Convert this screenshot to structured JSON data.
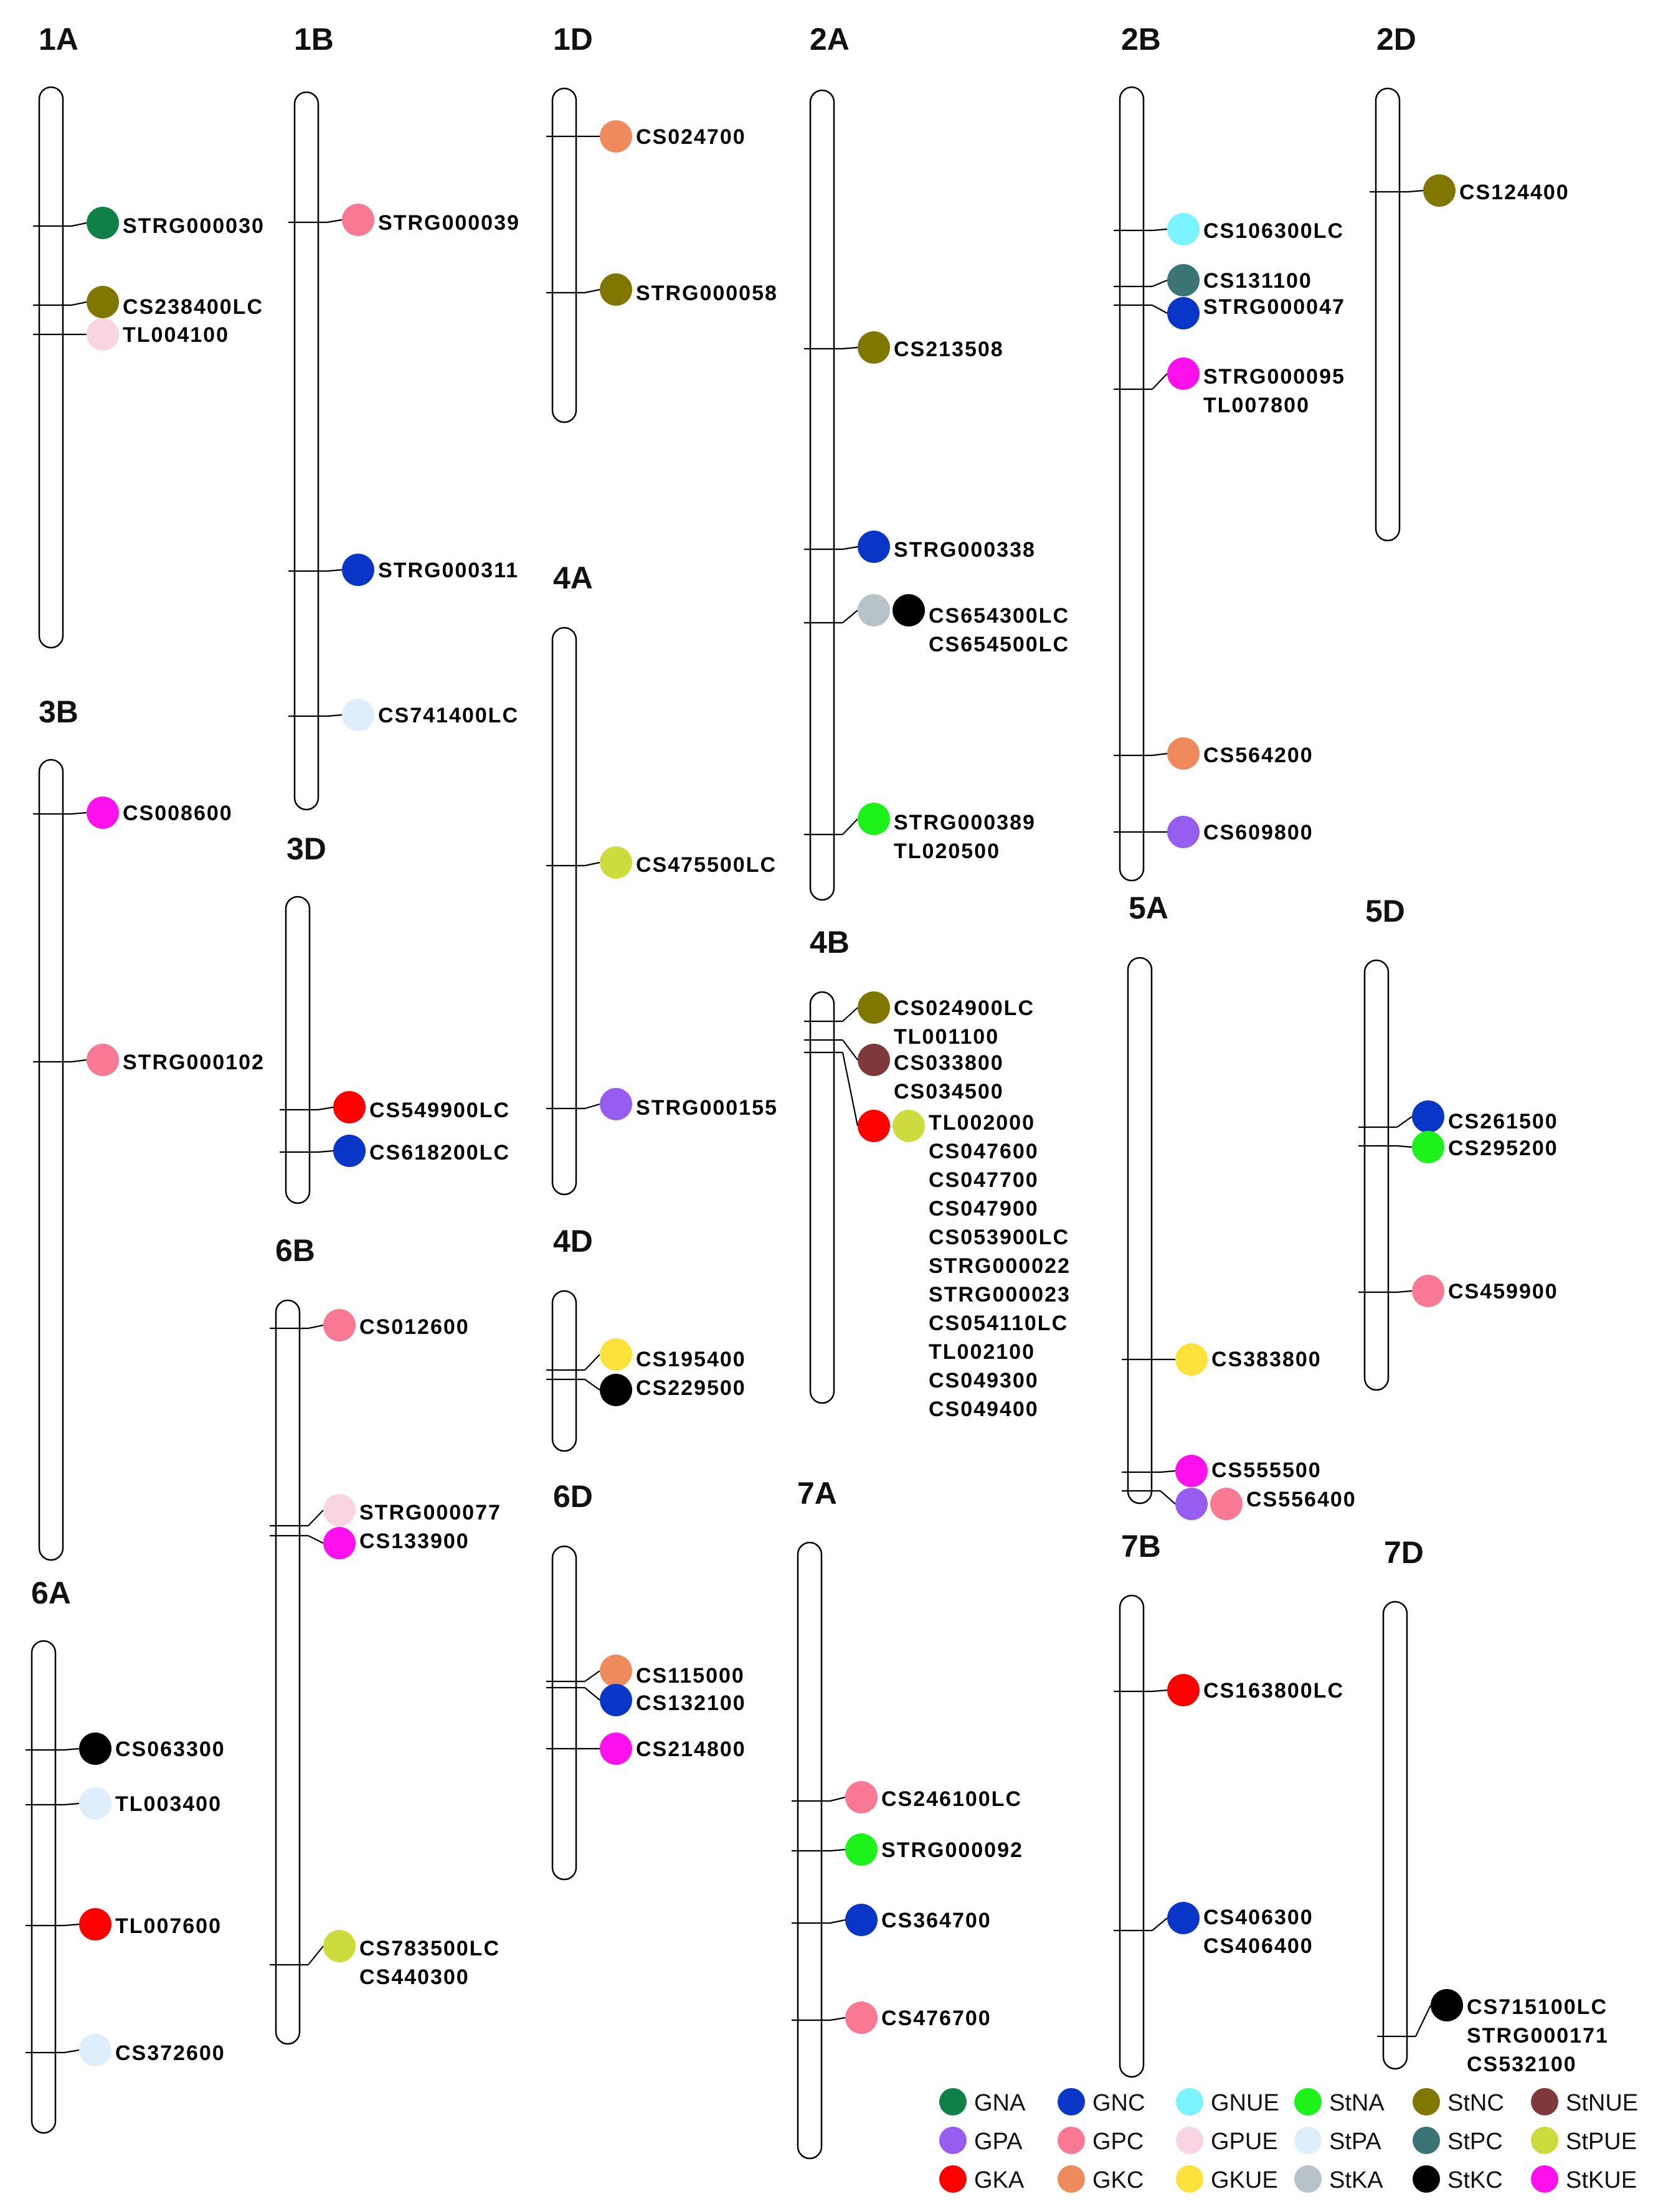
{
  "trait_colors": {
    "GNA": "#0e8048",
    "GNC": "#0a36c7",
    "GNUE": "#7cf4ff",
    "StNA": "#1df21a",
    "StNC": "#807700",
    "StNUE": "#7e3a3a",
    "GPA": "#975cf0",
    "GPC": "#f97893",
    "GPUE": "#f9d4e3",
    "StPA": "#dfeefb",
    "StPC": "#3a7474",
    "StPUE": "#ccdc3c",
    "GKA": "#ff0000",
    "GKC": "#ef8a5c",
    "GKUE": "#fde23c",
    "StKA": "#b8c2c9",
    "StKC": "#000000",
    "StKUE": "#ff11ee"
  },
  "legend": [
    [
      "GNA",
      "GNC",
      "GNUE",
      "StNA",
      "StNC",
      "StNUE"
    ],
    [
      "GPA",
      "GPC",
      "GPUE",
      "StPA",
      "StPC",
      "StPUE"
    ],
    [
      "GKA",
      "GKC",
      "GKUE",
      "StKA",
      "StKC",
      "StKUE"
    ]
  ],
  "chromosomes": [
    {
      "name": "1A",
      "loci": [
        {
          "traits": [
            "GNA"
          ],
          "genes": [
            "STRG000030"
          ]
        },
        {
          "traits": [
            "StNC"
          ],
          "genes": [
            "CS238400LC"
          ]
        },
        {
          "traits": [
            "GPUE"
          ],
          "genes": [
            "TL004100"
          ]
        }
      ]
    },
    {
      "name": "1B",
      "loci": [
        {
          "traits": [
            "GPC"
          ],
          "genes": [
            "STRG000039"
          ]
        },
        {
          "traits": [
            "GNC"
          ],
          "genes": [
            "STRG000311"
          ]
        },
        {
          "traits": [
            "StPA"
          ],
          "genes": [
            "CS741400LC"
          ]
        }
      ]
    },
    {
      "name": "1D",
      "loci": [
        {
          "traits": [
            "GKC"
          ],
          "genes": [
            "CS024700"
          ]
        },
        {
          "traits": [
            "StNC"
          ],
          "genes": [
            "STRG000058"
          ]
        }
      ]
    },
    {
      "name": "2A",
      "loci": [
        {
          "traits": [
            "StNC"
          ],
          "genes": [
            "CS213508"
          ]
        },
        {
          "traits": [
            "GNC"
          ],
          "genes": [
            "STRG000338"
          ]
        },
        {
          "traits": [
            "StKA",
            "StKC"
          ],
          "genes": [
            "CS654300LC",
            "CS654500LC"
          ]
        },
        {
          "traits": [
            "StNA"
          ],
          "genes": [
            "STRG000389",
            "TL020500"
          ]
        }
      ]
    },
    {
      "name": "2B",
      "loci": [
        {
          "traits": [
            "GNUE"
          ],
          "genes": [
            "CS106300LC"
          ]
        },
        {
          "traits": [
            "StPC"
          ],
          "genes": [
            "CS131100"
          ]
        },
        {
          "traits": [
            "GNC"
          ],
          "genes": [
            "STRG000047"
          ]
        },
        {
          "traits": [
            "StKUE"
          ],
          "genes": [
            "STRG000095",
            "TL007800"
          ]
        },
        {
          "traits": [
            "GKC"
          ],
          "genes": [
            "CS564200"
          ]
        },
        {
          "traits": [
            "GPA"
          ],
          "genes": [
            "CS609800"
          ]
        }
      ]
    },
    {
      "name": "2D",
      "loci": [
        {
          "traits": [
            "StNC"
          ],
          "genes": [
            "CS124400"
          ]
        }
      ]
    },
    {
      "name": "3B",
      "loci": [
        {
          "traits": [
            "StKUE"
          ],
          "genes": [
            "CS008600"
          ]
        },
        {
          "traits": [
            "GPC"
          ],
          "genes": [
            "STRG000102"
          ]
        }
      ]
    },
    {
      "name": "3D",
      "loci": [
        {
          "traits": [
            "GKA"
          ],
          "genes": [
            "CS549900LC"
          ]
        },
        {
          "traits": [
            "GNC"
          ],
          "genes": [
            "CS618200LC"
          ]
        }
      ]
    },
    {
      "name": "4A",
      "loci": [
        {
          "traits": [
            "StPUE"
          ],
          "genes": [
            "CS475500LC"
          ]
        },
        {
          "traits": [
            "GPA"
          ],
          "genes": [
            "STRG000155"
          ]
        }
      ]
    },
    {
      "name": "4B",
      "loci": [
        {
          "traits": [
            "StNC"
          ],
          "genes": [
            "CS024900LC",
            "TL001100"
          ]
        },
        {
          "traits": [
            "StNUE"
          ],
          "genes": [
            "CS033800",
            "CS034500"
          ]
        },
        {
          "traits": [
            "GKA",
            "StPUE"
          ],
          "genes": [
            "TL002000",
            "CS047600",
            "CS047700",
            "CS047900",
            "CS053900LC",
            "STRG000022",
            "STRG000023",
            "CS054110LC",
            "TL002100",
            "CS049300",
            "CS049400"
          ]
        }
      ]
    },
    {
      "name": "4D",
      "loci": [
        {
          "traits": [
            "GKUE"
          ],
          "genes": [
            "CS195400"
          ]
        },
        {
          "traits": [
            "StKC"
          ],
          "genes": [
            "CS229500"
          ]
        }
      ]
    },
    {
      "name": "5A",
      "loci": [
        {
          "traits": [
            "GKUE"
          ],
          "genes": [
            "CS383800"
          ]
        },
        {
          "traits": [
            "StKUE"
          ],
          "genes": [
            "CS555500"
          ]
        },
        {
          "traits": [
            "GPA",
            "GPC"
          ],
          "genes": [
            "CS556400"
          ]
        }
      ]
    },
    {
      "name": "5D",
      "loci": [
        {
          "traits": [
            "GNC"
          ],
          "genes": [
            "CS261500"
          ]
        },
        {
          "traits": [
            "StNA"
          ],
          "genes": [
            "CS295200"
          ]
        },
        {
          "traits": [
            "GPC"
          ],
          "genes": [
            "CS459900"
          ]
        }
      ]
    },
    {
      "name": "6A",
      "loci": [
        {
          "traits": [
            "StKC"
          ],
          "genes": [
            "CS063300"
          ]
        },
        {
          "traits": [
            "StPA"
          ],
          "genes": [
            "TL003400"
          ]
        },
        {
          "traits": [
            "GKA"
          ],
          "genes": [
            "TL007600"
          ]
        },
        {
          "traits": [
            "StPA"
          ],
          "genes": [
            "CS372600"
          ]
        }
      ]
    },
    {
      "name": "6B",
      "loci": [
        {
          "traits": [
            "GPC"
          ],
          "genes": [
            "CS012600"
          ]
        },
        {
          "traits": [
            "GPUE"
          ],
          "genes": [
            "STRG000077"
          ]
        },
        {
          "traits": [
            "StKUE"
          ],
          "genes": [
            "CS133900"
          ]
        },
        {
          "traits": [
            "StPUE"
          ],
          "genes": [
            "CS783500LC",
            "CS440300"
          ]
        }
      ]
    },
    {
      "name": "6D",
      "loci": [
        {
          "traits": [
            "GKC"
          ],
          "genes": [
            "CS115000"
          ]
        },
        {
          "traits": [
            "GNC"
          ],
          "genes": [
            "CS132100"
          ]
        },
        {
          "traits": [
            "StKUE"
          ],
          "genes": [
            "CS214800"
          ]
        }
      ]
    },
    {
      "name": "7A",
      "loci": [
        {
          "traits": [
            "GPC"
          ],
          "genes": [
            "CS246100LC"
          ]
        },
        {
          "traits": [
            "StNA"
          ],
          "genes": [
            "STRG000092"
          ]
        },
        {
          "traits": [
            "GNC"
          ],
          "genes": [
            "CS364700"
          ]
        },
        {
          "traits": [
            "GPC"
          ],
          "genes": [
            "CS476700"
          ]
        }
      ]
    },
    {
      "name": "7B",
      "loci": [
        {
          "traits": [
            "GKA"
          ],
          "genes": [
            "CS163800LC"
          ]
        },
        {
          "traits": [
            "GNC"
          ],
          "genes": [
            "CS406300",
            "CS406400"
          ]
        }
      ]
    },
    {
      "name": "7D",
      "loci": [
        {
          "traits": [
            "StKC"
          ],
          "genes": [
            "CS715100LC",
            "STRG000171",
            "CS532100"
          ]
        }
      ]
    }
  ]
}
